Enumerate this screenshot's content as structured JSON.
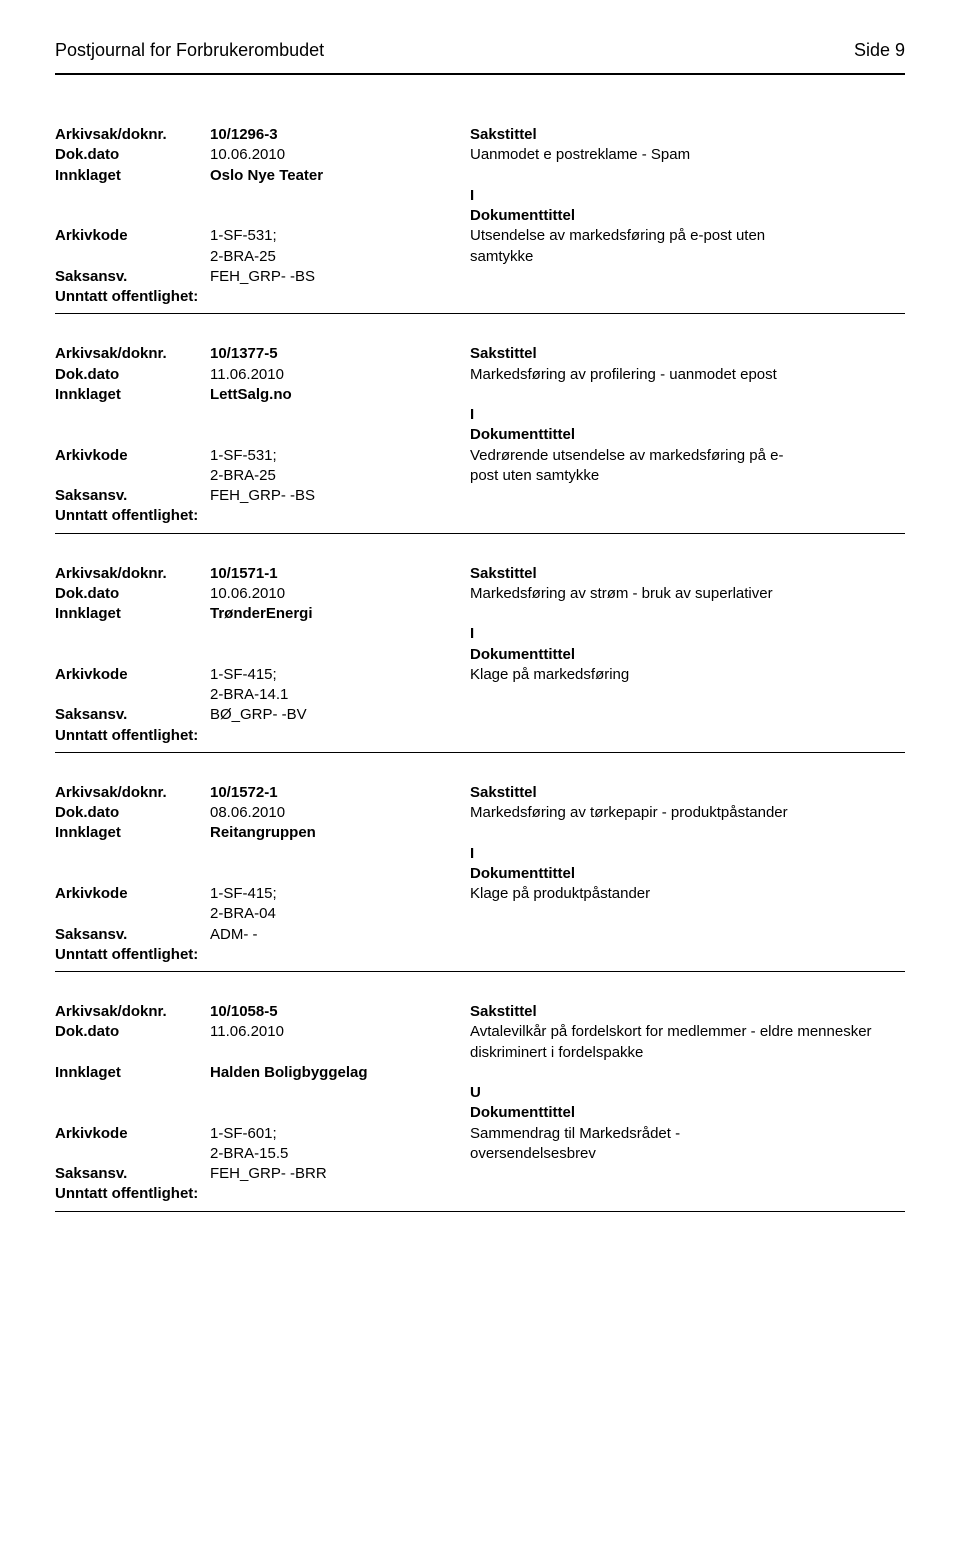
{
  "header": {
    "title": "Postjournal for Forbrukerombudet",
    "page": "Side 9"
  },
  "records": [
    {
      "arkivsak": "10/1296-3",
      "sakstittel_label": "Sakstittel",
      "dokdato": "10.06.2010",
      "dokdato_text": "Uanmodet e postreklame - Spam",
      "innklaget": "Oslo Nye Teater",
      "doc_tag": "I",
      "doktittel_label": "Dokumenttittel",
      "arkivkode_lines": [
        "1-SF-531;",
        "2-BRA-25"
      ],
      "dok_text_lines": [
        "Utsendelse av markedsføring på e-post uten",
        "samtykke"
      ],
      "saksansv": "FEH_GRP- -BS",
      "unntatt": ""
    },
    {
      "arkivsak": "10/1377-5",
      "sakstittel_label": "Sakstittel",
      "dokdato": "11.06.2010",
      "dokdato_text": "Markedsføring av profilering - uanmodet epost",
      "innklaget": "LettSalg.no",
      "doc_tag": "I",
      "doktittel_label": "Dokumenttittel",
      "arkivkode_lines": [
        "1-SF-531;",
        "2-BRA-25"
      ],
      "dok_text_lines": [
        "Vedrørende  utsendelse av markedsføring på e-",
        "post uten samtykke"
      ],
      "saksansv": "FEH_GRP- -BS",
      "unntatt": ""
    },
    {
      "arkivsak": "10/1571-1",
      "sakstittel_label": "Sakstittel",
      "dokdato": "10.06.2010",
      "dokdato_text": "Markedsføring av strøm - bruk av superlativer",
      "innklaget": "TrønderEnergi",
      "doc_tag": "I",
      "doktittel_label": "Dokumenttittel",
      "arkivkode_lines": [
        "1-SF-415;",
        "2-BRA-14.1"
      ],
      "dok_text_lines": [
        "Klage på markedsføring"
      ],
      "saksansv": "BØ_GRP- -BV",
      "unntatt": ""
    },
    {
      "arkivsak": "10/1572-1",
      "sakstittel_label": "Sakstittel",
      "dokdato": "08.06.2010",
      "dokdato_text": "Markedsføring av tørkepapir - produktpåstander",
      "innklaget": "Reitangruppen",
      "doc_tag": "I",
      "doktittel_label": "Dokumenttittel",
      "arkivkode_lines": [
        "1-SF-415;",
        "2-BRA-04"
      ],
      "dok_text_lines": [
        "Klage på produktpåstander"
      ],
      "saksansv": "ADM- -",
      "unntatt": ""
    },
    {
      "arkivsak": "10/1058-5",
      "sakstittel_label": "Sakstittel",
      "dokdato": "11.06.2010",
      "dokdato_text": "Avtalevilkår på fordelskort for medlemmer - eldre mennesker diskriminert i fordelspakke",
      "innklaget": "Halden Boligbyggelag",
      "doc_tag": "U",
      "doktittel_label": "Dokumenttittel",
      "arkivkode_lines": [
        "1-SF-601;",
        "2-BRA-15.5"
      ],
      "dok_text_lines": [
        "Sammendrag til Markedsrådet -",
        "oversendelsesbrev"
      ],
      "saksansv": "FEH_GRP- -BRR",
      "unntatt": ""
    }
  ],
  "labels": {
    "arkivsak": "Arkivsak/doknr.",
    "dokdato": "Dok.dato",
    "innklaget": "Innklaget",
    "arkivkode": "Arkivkode",
    "saksansv": "Saksansv.",
    "unntatt": "Unntatt offentlighet:"
  }
}
